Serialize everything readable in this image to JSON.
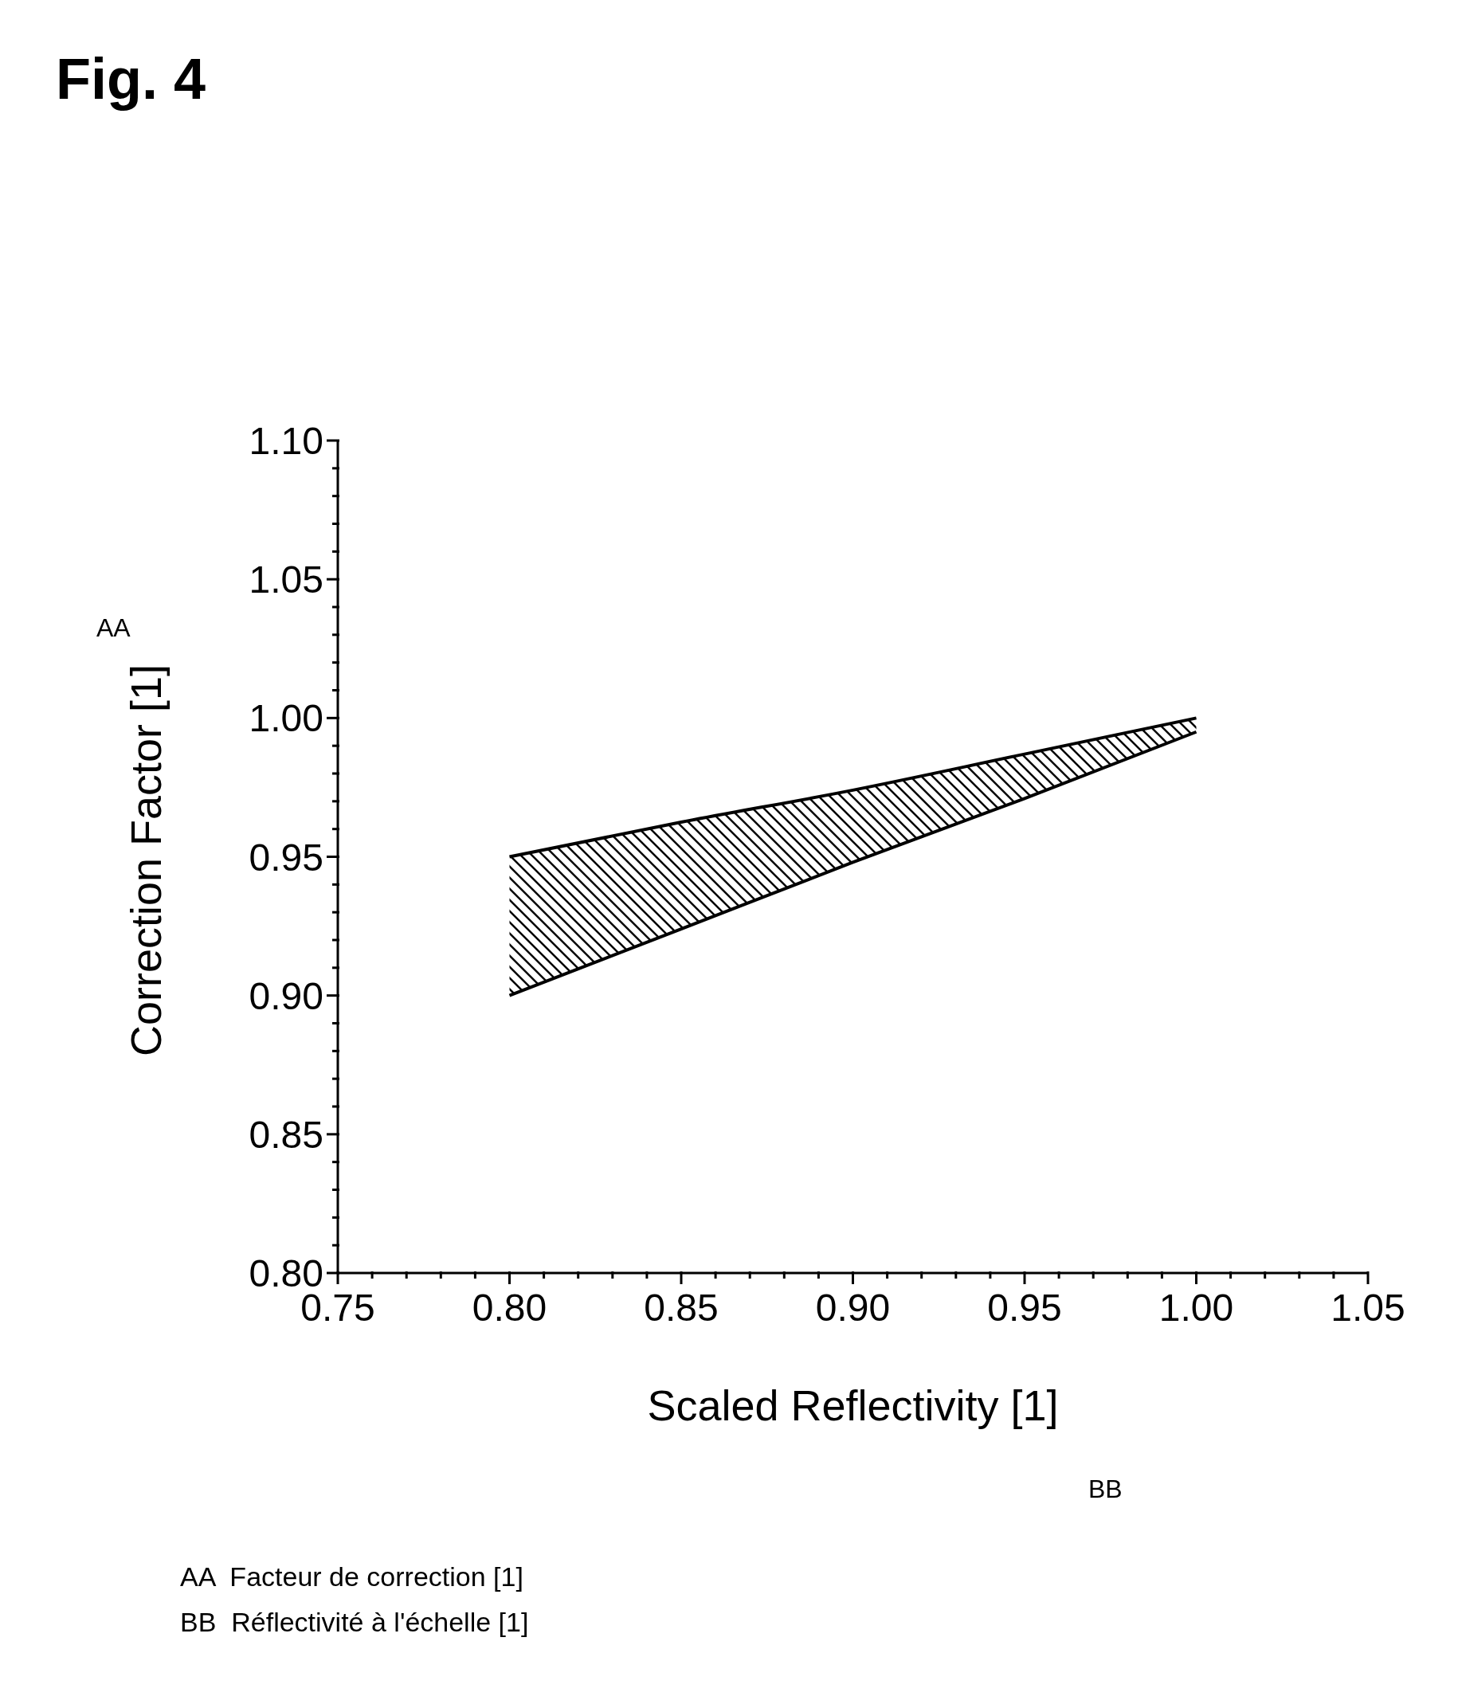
{
  "chart_data": {
    "type": "line",
    "title": "Fig. 4",
    "xlabel": "Scaled Reflectivity [1]",
    "ylabel": "Correction Factor [1]",
    "annotations": [
      "AA",
      "BB",
      "AA  Facteur de correction [1]",
      "BB  Réflectivité à l'échelle [1]"
    ],
    "x": [
      0.8,
      0.85,
      0.9,
      0.95,
      1.0
    ],
    "series": [
      {
        "color": "#000000",
        "values": [
          0.95,
          0.9625,
          0.974,
          0.987,
          1.0
        ],
        "lower": [
          0.9,
          0.924,
          0.948,
          0.971,
          0.995
        ],
        "upper": [
          0.95,
          0.9625,
          0.974,
          0.987,
          1.0
        ]
      },
      {
        "color": "#000000",
        "values": [
          0.9,
          0.924,
          0.948,
          0.971,
          0.995
        ]
      }
    ],
    "xlim": [
      0.75,
      1.05
    ],
    "ylim": [
      0.8,
      1.1
    ],
    "xticks": [
      0.75,
      {
        "value": 0.76,
        "label": null
      },
      {
        "value": 0.77,
        "label": null
      },
      {
        "value": 0.78,
        "label": null
      },
      {
        "value": 0.79,
        "label": null
      },
      {
        "value": 0.8,
        "label": "0.80"
      },
      {
        "value": 0.81,
        "label": null
      },
      {
        "value": 0.82,
        "label": null
      },
      {
        "value": 0.83,
        "label": null
      },
      {
        "value": 0.84,
        "label": null
      },
      0.85,
      {
        "value": 0.86,
        "label": null
      },
      {
        "value": 0.87,
        "label": null
      },
      {
        "value": 0.88,
        "label": null
      },
      {
        "value": 0.89,
        "label": null
      },
      {
        "value": 0.9,
        "label": "0.90"
      },
      {
        "value": 0.91,
        "label": null
      },
      {
        "value": 0.92,
        "label": null
      },
      {
        "value": 0.93,
        "label": null
      },
      {
        "value": 0.94,
        "label": null
      },
      0.95,
      {
        "value": 0.96,
        "label": null
      },
      {
        "value": 0.97,
        "label": null
      },
      {
        "value": 0.98,
        "label": null
      },
      {
        "value": 0.99,
        "label": null
      },
      {
        "value": 1.0,
        "label": "1.00"
      },
      {
        "value": 1.01,
        "label": null
      },
      {
        "value": 1.02,
        "label": null
      },
      {
        "value": 1.03,
        "label": null
      },
      {
        "value": 1.04,
        "label": null
      },
      1.05
    ],
    "yticks": [
      {
        "value": 0.8,
        "label": "0.80"
      },
      {
        "value": 0.81,
        "label": null
      },
      {
        "value": 0.82,
        "label": null
      },
      {
        "value": 0.83,
        "label": null
      },
      {
        "value": 0.84,
        "label": null
      },
      0.85,
      {
        "value": 0.86,
        "label": null
      },
      {
        "value": 0.87,
        "label": null
      },
      {
        "value": 0.88,
        "label": null
      },
      {
        "value": 0.89,
        "label": null
      },
      {
        "value": 0.9,
        "label": "0.90"
      },
      {
        "value": 0.91,
        "label": null
      },
      {
        "value": 0.92,
        "label": null
      },
      {
        "value": 0.93,
        "label": null
      },
      {
        "value": 0.94,
        "label": null
      },
      0.95,
      {
        "value": 0.96,
        "label": null
      },
      {
        "value": 0.97,
        "label": null
      },
      {
        "value": 0.98,
        "label": null
      },
      {
        "value": 0.99,
        "label": null
      },
      {
        "value": 1.0,
        "label": "1.00"
      },
      {
        "value": 1.01,
        "label": null
      },
      {
        "value": 1.02,
        "label": null
      },
      {
        "value": 1.03,
        "label": null
      },
      {
        "value": 1.04,
        "label": null
      },
      1.05,
      {
        "value": 1.06,
        "label": null
      },
      {
        "value": 1.07,
        "label": null
      },
      {
        "value": 1.08,
        "label": null
      },
      {
        "value": 1.09,
        "label": null
      },
      {
        "value": 1.1,
        "label": "1.10"
      }
    ]
  }
}
